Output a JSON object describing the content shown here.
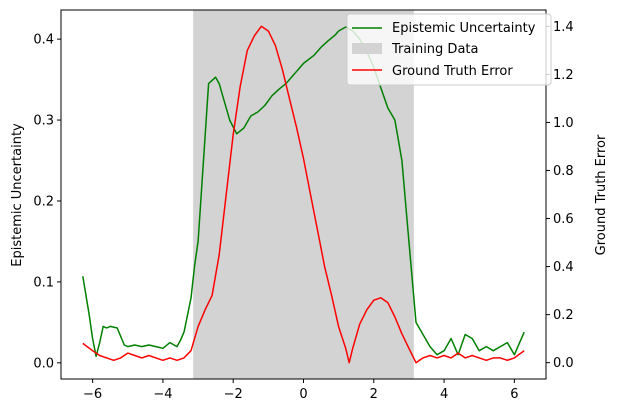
{
  "chart_data": {
    "type": "line",
    "title": "",
    "xlabel": "",
    "ylabel_left": "Epistemic Uncertainty",
    "ylabel_right": "Ground Truth Error",
    "xlim": [
      -6.9,
      6.9
    ],
    "ylim_left": [
      -0.02,
      0.436
    ],
    "ylim_right": [
      -0.068,
      1.468
    ],
    "x_ticks": [
      "−6",
      "−4",
      "−2",
      "0",
      "2",
      "4",
      "6"
    ],
    "x_tick_values": [
      -6,
      -4,
      -2,
      0,
      2,
      4,
      6
    ],
    "y_left_ticks": [
      "0.0",
      "0.1",
      "0.2",
      "0.3",
      "0.4"
    ],
    "y_left_tick_values": [
      0.0,
      0.1,
      0.2,
      0.3,
      0.4
    ],
    "y_right_ticks": [
      "0.0",
      "0.2",
      "0.4",
      "0.6",
      "0.8",
      "1.0",
      "1.2",
      "1.4"
    ],
    "y_right_tick_values": [
      0.0,
      0.2,
      0.4,
      0.6,
      0.8,
      1.0,
      1.2,
      1.4
    ],
    "grid": false,
    "legend_position": "top-right",
    "training_region": {
      "label": "Training Data",
      "x_start": -3.14,
      "x_end": 3.14,
      "color": "#d3d3d3"
    },
    "series": [
      {
        "name": "Epistemic Uncertainty",
        "axis": "left",
        "color": "#008000",
        "x": [
          -6.28,
          -6.1,
          -6.0,
          -5.9,
          -5.8,
          -5.7,
          -5.6,
          -5.5,
          -5.3,
          -5.1,
          -5.0,
          -4.8,
          -4.6,
          -4.4,
          -4.2,
          -4.0,
          -3.8,
          -3.6,
          -3.5,
          -3.4,
          -3.2,
          -3.1,
          -3.0,
          -2.8,
          -2.7,
          -2.5,
          -2.4,
          -2.3,
          -2.1,
          -1.9,
          -1.7,
          -1.5,
          -1.3,
          -1.1,
          -0.9,
          -0.7,
          -0.5,
          -0.2,
          0.0,
          0.3,
          0.5,
          0.7,
          0.9,
          1.0,
          1.2,
          1.4,
          1.6,
          1.8,
          2.0,
          2.2,
          2.4,
          2.6,
          2.8,
          3.0,
          3.2,
          3.4,
          3.6,
          3.8,
          4.0,
          4.2,
          4.4,
          4.6,
          4.8,
          5.0,
          5.2,
          5.4,
          5.6,
          5.8,
          6.0,
          6.28
        ],
        "y": [
          0.107,
          0.06,
          0.03,
          0.008,
          0.025,
          0.045,
          0.043,
          0.045,
          0.043,
          0.022,
          0.02,
          0.022,
          0.02,
          0.022,
          0.02,
          0.018,
          0.025,
          0.02,
          0.028,
          0.038,
          0.08,
          0.12,
          0.15,
          0.28,
          0.345,
          0.353,
          0.345,
          0.33,
          0.3,
          0.283,
          0.29,
          0.305,
          0.31,
          0.318,
          0.33,
          0.338,
          0.345,
          0.36,
          0.37,
          0.38,
          0.39,
          0.398,
          0.405,
          0.41,
          0.415,
          0.41,
          0.4,
          0.385,
          0.365,
          0.34,
          0.315,
          0.3,
          0.25,
          0.15,
          0.05,
          0.035,
          0.02,
          0.01,
          0.015,
          0.03,
          0.01,
          0.035,
          0.03,
          0.015,
          0.02,
          0.015,
          0.02,
          0.025,
          0.01,
          0.038
        ]
      },
      {
        "name": "Ground Truth Error",
        "axis": "right",
        "color": "#ff0000",
        "x": [
          -6.28,
          -6.0,
          -5.8,
          -5.6,
          -5.4,
          -5.2,
          -5.0,
          -4.8,
          -4.6,
          -4.4,
          -4.2,
          -4.0,
          -3.8,
          -3.6,
          -3.4,
          -3.2,
          -3.0,
          -2.8,
          -2.6,
          -2.4,
          -2.2,
          -2.0,
          -1.8,
          -1.6,
          -1.4,
          -1.2,
          -1.0,
          -0.8,
          -0.6,
          -0.4,
          -0.2,
          0.0,
          0.2,
          0.4,
          0.6,
          0.8,
          1.0,
          1.2,
          1.3,
          1.4,
          1.6,
          1.8,
          2.0,
          2.2,
          2.4,
          2.6,
          2.8,
          3.0,
          3.2,
          3.4,
          3.6,
          3.8,
          4.0,
          4.2,
          4.4,
          4.6,
          4.8,
          5.0,
          5.2,
          5.4,
          5.6,
          5.8,
          6.0,
          6.28
        ],
        "y": [
          0.08,
          0.05,
          0.03,
          0.02,
          0.01,
          0.02,
          0.04,
          0.03,
          0.02,
          0.03,
          0.02,
          0.01,
          0.02,
          0.01,
          0.02,
          0.05,
          0.15,
          0.22,
          0.28,
          0.45,
          0.7,
          0.95,
          1.15,
          1.3,
          1.36,
          1.4,
          1.38,
          1.32,
          1.22,
          1.1,
          0.98,
          0.85,
          0.7,
          0.55,
          0.4,
          0.28,
          0.15,
          0.06,
          0.0,
          0.06,
          0.16,
          0.22,
          0.26,
          0.27,
          0.25,
          0.19,
          0.12,
          0.06,
          0.0,
          0.02,
          0.03,
          0.02,
          0.03,
          0.02,
          0.04,
          0.02,
          0.03,
          0.02,
          0.01,
          0.02,
          0.02,
          0.01,
          0.02,
          0.05
        ]
      }
    ]
  }
}
